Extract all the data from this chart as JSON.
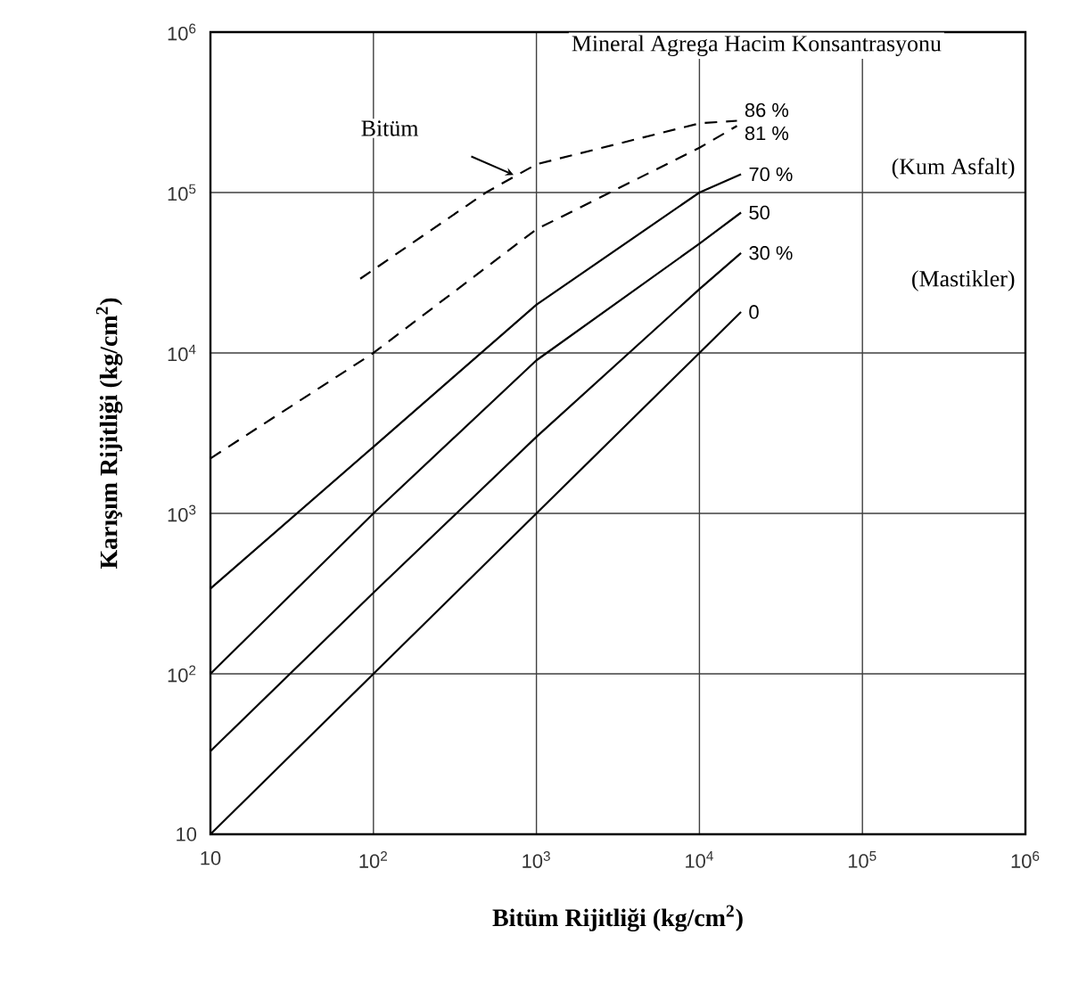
{
  "chart_data": {
    "type": "line",
    "xlabel": "Bitüm Rijitliği (kg/cm$^{2}$)",
    "ylabel": "Karışım Rijitliği (kg/cm$^{2}$)",
    "legend_title": "Mineral Agrega Hacim Konsantrasyonu",
    "log": "xy",
    "grid": true,
    "marker": "none",
    "legend": false,
    "xlim": [
      10,
      1000000
    ],
    "ylim": [
      10,
      1000000
    ],
    "xticks": [
      {
        "value": 10,
        "label": "10"
      },
      {
        "value": 100,
        "label": "10$^{2}$"
      },
      {
        "value": 1000,
        "label": "10$^{3}$"
      },
      {
        "value": 10000,
        "label": "10$^{4}$"
      },
      {
        "value": 100000,
        "label": "10$^{5}$"
      },
      {
        "value": 1000000,
        "label": "10$^{6}$"
      }
    ],
    "yticks": [
      {
        "value": 10,
        "label": "10"
      },
      {
        "value": 100,
        "label": "10$^{2}$"
      },
      {
        "value": 1000,
        "label": "10$^{3}$"
      },
      {
        "value": 10000,
        "label": "10$^{4}$"
      },
      {
        "value": 100000,
        "label": "10$^{5}$"
      },
      {
        "value": 1000000,
        "label": "10$^{6}$"
      }
    ],
    "series": [
      {
        "name": "86 %",
        "color": "#000000",
        "line_style": "dashed",
        "x": [
          83,
          490,
          1000,
          10000,
          17000
        ],
        "values": [
          29000,
          100000,
          150000,
          270000,
          280000
        ]
      },
      {
        "name": "81 %",
        "color": "#000000",
        "line_style": "dashed",
        "x": [
          10,
          100,
          1000,
          10000,
          17000
        ],
        "values": [
          2200,
          10000,
          59000,
          190000,
          260000
        ]
      },
      {
        "name": "70 %",
        "color": "#000000",
        "line_style": "solid",
        "x": [
          10,
          100,
          1000,
          10000,
          18000
        ],
        "values": [
          340,
          2600,
          20000,
          100000,
          130000
        ]
      },
      {
        "name": "50",
        "color": "#000000",
        "line_style": "solid",
        "x": [
          10,
          100,
          1000,
          10000,
          18000
        ],
        "values": [
          100,
          1000,
          9000,
          48000,
          75000
        ]
      },
      {
        "name": "30 %",
        "color": "#000000",
        "line_style": "solid",
        "x": [
          10,
          100,
          1000,
          10000,
          18000
        ],
        "values": [
          33,
          320,
          3000,
          25000,
          42000
        ]
      },
      {
        "name": "0",
        "color": "#000000",
        "line_style": "solid",
        "x": [
          10,
          100,
          1000,
          10000,
          18000
        ],
        "values": [
          10,
          100,
          1000,
          10000,
          18000
        ]
      }
    ],
    "annotations": [
      "Bitüm",
      "(Kum Asfalt)",
      "(Mastikler)"
    ]
  }
}
